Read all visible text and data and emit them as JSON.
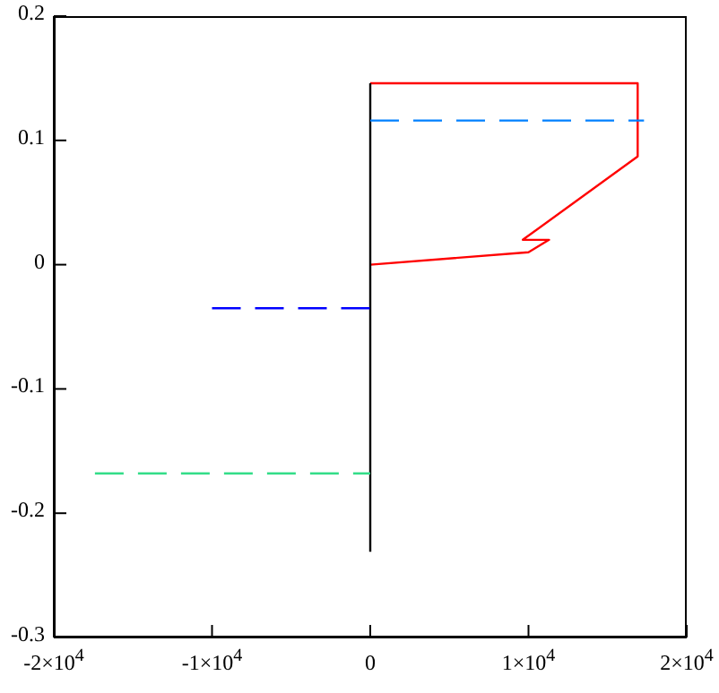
{
  "chart_data": {
    "type": "line",
    "xlim": [
      -20000,
      20000
    ],
    "ylim": [
      -0.3,
      0.2
    ],
    "xticks": [
      {
        "value": -20000,
        "label": "-2×10$^{4}$"
      },
      {
        "value": -10000,
        "label": "-1×10$^{4}$"
      },
      0,
      {
        "value": 10000,
        "label": "1×10$^{4}$"
      },
      {
        "value": 20000,
        "label": "2×10$^{4}$"
      }
    ],
    "yticks": [
      -0.3,
      -0.2,
      -0.1,
      0,
      0.1,
      0.2
    ],
    "grid": false,
    "marker": "none",
    "series": [
      {
        "color": "#ff0000",
        "line_style": "solid",
        "x": [
          0,
          10000,
          11300,
          9640,
          16900,
          16900,
          0
        ],
        "values": [
          0,
          0.01,
          0.02,
          0.02,
          0.087,
          0.146,
          0.146
        ]
      },
      {
        "color": "#000000",
        "line_style": "solid",
        "x": [
          0,
          0
        ],
        "values": [
          -0.231,
          0.146
        ]
      },
      {
        "color": "#0080ff",
        "line_style": "dashed",
        "x": [
          0,
          17300
        ],
        "values": [
          0.116,
          0.116
        ]
      },
      {
        "color": "#0000ff",
        "line_style": "dashed",
        "x": [
          -10000,
          0
        ],
        "values": [
          -0.035,
          -0.035
        ]
      },
      {
        "color": "#33dd88",
        "line_style": "dashed",
        "x": [
          -17400,
          0
        ],
        "values": [
          -0.168,
          -0.168
        ]
      }
    ]
  }
}
